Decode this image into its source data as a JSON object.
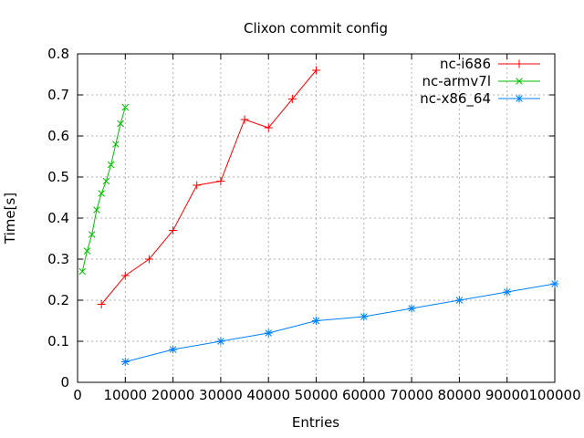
{
  "page": {
    "background": "#ffffff"
  },
  "chart_data": {
    "type": "line",
    "title": "Clixon commit config",
    "xlabel": "Entries",
    "ylabel": "Time[s]",
    "xlim": [
      0,
      100000
    ],
    "ylim": [
      0,
      0.8
    ],
    "xticks": [
      0,
      10000,
      20000,
      30000,
      40000,
      50000,
      60000,
      70000,
      80000,
      90000,
      100000
    ],
    "xtick_labels": [
      "0",
      "10000",
      "20000",
      "30000",
      "40000",
      "50000",
      "60000",
      "70000",
      "80000",
      "90000",
      "100000"
    ],
    "yticks": [
      0,
      0.1,
      0.2,
      0.3,
      0.4,
      0.5,
      0.6,
      0.7,
      0.8
    ],
    "ytick_labels": [
      "0",
      "0.1",
      "0.2",
      "0.3",
      "0.4",
      "0.5",
      "0.6",
      "0.7",
      "0.8"
    ],
    "grid": true,
    "grid_color": "#b0b0b0",
    "axis_color": "#000000",
    "legend_position": "top-right-inside",
    "series": [
      {
        "name": "nc-i686",
        "color": "#ff0000",
        "marker": "plus",
        "x": [
          5000,
          10000,
          15000,
          20000,
          25000,
          30000,
          35000,
          40000,
          45000,
          50000
        ],
        "y": [
          0.19,
          0.26,
          0.3,
          0.37,
          0.48,
          0.49,
          0.64,
          0.62,
          0.69,
          0.76
        ]
      },
      {
        "name": "nc-armv7l",
        "color": "#00c000",
        "marker": "cross",
        "x": [
          1000,
          2000,
          3000,
          4000,
          5000,
          6000,
          7000,
          8000,
          9000,
          10000
        ],
        "y": [
          0.27,
          0.32,
          0.36,
          0.42,
          0.46,
          0.49,
          0.53,
          0.58,
          0.63,
          0.67
        ]
      },
      {
        "name": "nc-x86_64",
        "color": "#0080ff",
        "marker": "asterisk",
        "x": [
          10000,
          20000,
          30000,
          40000,
          50000,
          60000,
          70000,
          80000,
          90000,
          100000
        ],
        "y": [
          0.05,
          0.08,
          0.1,
          0.12,
          0.15,
          0.16,
          0.18,
          0.2,
          0.22,
          0.24
        ]
      }
    ]
  }
}
